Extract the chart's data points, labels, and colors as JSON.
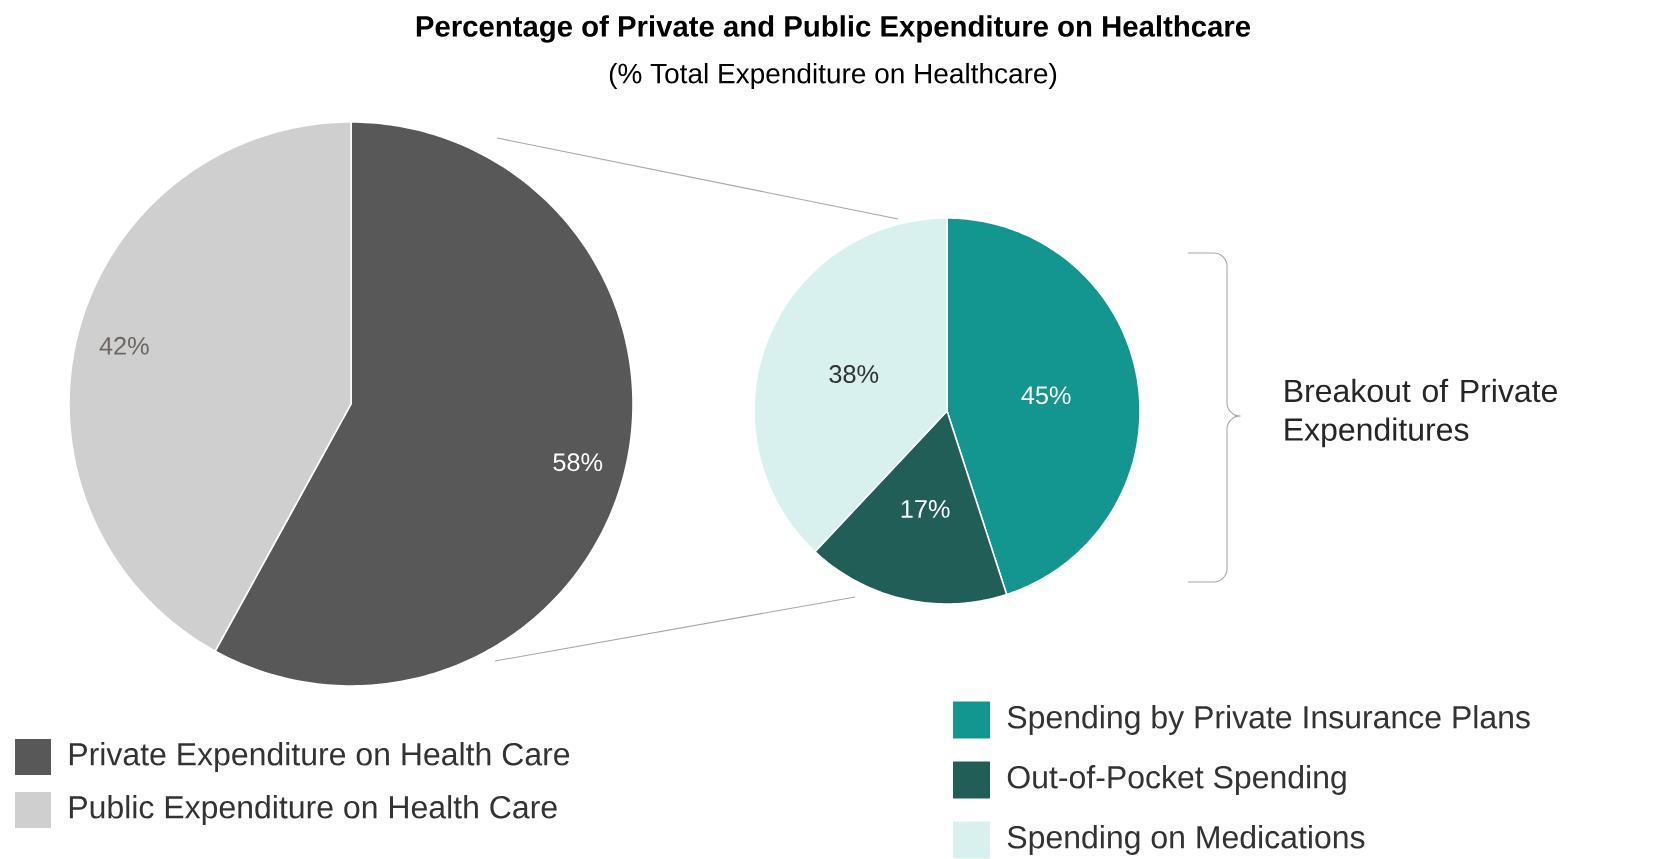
{
  "chart_data": [
    {
      "type": "pie",
      "title": "Percentage of Private and Public Expenditure on Healthcare",
      "subtitle": "(% Total Expenditure on Healthcare)",
      "categories": [
        "Private Expenditure on Health Care",
        "Public Expenditure on Health Care"
      ],
      "values": [
        58,
        42
      ],
      "colors": [
        "#585858",
        "#d0cfcf"
      ],
      "value_labels": [
        "58%",
        "42%"
      ],
      "legend": "bottom"
    },
    {
      "type": "pie",
      "annotations": [
        "Breakout of Private Expenditures"
      ],
      "categories": [
        "Spending by Private Insurance Plans",
        "Out-of-Pocket Spending",
        "Spending on Medications"
      ],
      "values": [
        45,
        17,
        38
      ],
      "colors": [
        "#12968f",
        "#225e58",
        "#d9f1ee"
      ],
      "value_labels": [
        "45%",
        "17%",
        "38%"
      ],
      "legend": "bottom"
    }
  ]
}
